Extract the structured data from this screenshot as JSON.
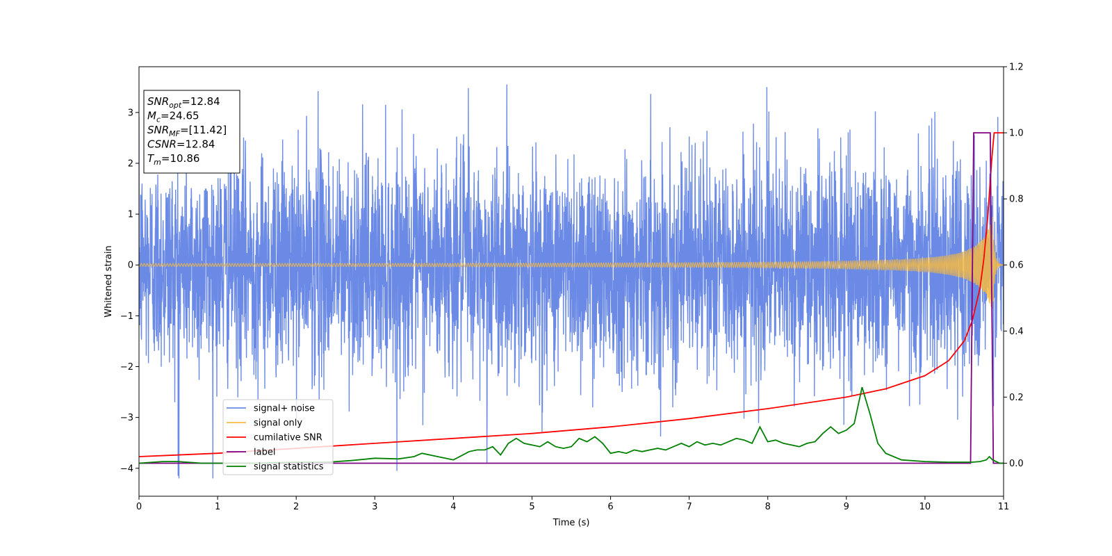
{
  "chart_data": {
    "type": "line",
    "xlabel": "Time (s)",
    "ylabel": "Whitened strain",
    "xlim": [
      0,
      11
    ],
    "ylim": [
      -4.55,
      3.9
    ],
    "y2lim": [
      -0.1,
      1.2
    ],
    "xticks": [
      "0",
      "1",
      "2",
      "3",
      "4",
      "5",
      "6",
      "7",
      "8",
      "9",
      "10",
      "11"
    ],
    "yticks": [
      "−4",
      "−3",
      "−2",
      "−1",
      "0",
      "1",
      "2",
      "3"
    ],
    "y2ticks": [
      "0.0",
      "0.2",
      "0.4",
      "0.6",
      "0.8",
      "1.0",
      "1.2"
    ],
    "grid": false,
    "legend_position": "lower-left",
    "info_box": {
      "snr_opt": {
        "symbol": "SNR",
        "sub": "opt",
        "value": "=12.84"
      },
      "mc": {
        "symbol": "M",
        "sub": "c",
        "value": "=24.65"
      },
      "snr_mf": {
        "symbol": "SNR",
        "sub": "MF",
        "value": "=[11.42]"
      },
      "csnr": {
        "symbol": "CSNR",
        "value": "=12.84"
      },
      "tm": {
        "symbol": "T",
        "sub": "m",
        "value": "=10.86"
      }
    },
    "series": [
      {
        "name": "signal+ noise",
        "color": "#6a8ae6",
        "axis": "left",
        "description_shape": "stationary noise, amplitude ~1.5 sigma, peaks to about 3.5 and -4.15"
      },
      {
        "name": "signal only",
        "color": "#f5b942",
        "axis": "left",
        "chirp": {
          "amplitude_start": 0.02,
          "amplitude_end": 1.0,
          "merger_time": 10.86
        }
      },
      {
        "name": "cumilative SNR",
        "color": "#ff0000",
        "axis": "right",
        "x": [
          0,
          1,
          2,
          3,
          4,
          5,
          6,
          7,
          8,
          9,
          9.5,
          10,
          10.3,
          10.5,
          10.6,
          10.7,
          10.75,
          10.8,
          10.85,
          10.88,
          11
        ],
        "y": [
          0.02,
          0.03,
          0.045,
          0.06,
          0.075,
          0.09,
          0.11,
          0.135,
          0.165,
          0.2,
          0.225,
          0.265,
          0.31,
          0.37,
          0.43,
          0.53,
          0.62,
          0.75,
          0.92,
          1.0,
          1.0
        ]
      },
      {
        "name": "label",
        "color": "#800080",
        "axis": "right",
        "x": [
          0,
          10.58,
          10.62,
          10.83,
          10.87,
          11
        ],
        "y": [
          0,
          0,
          1,
          1,
          0,
          0
        ]
      },
      {
        "name": "signal statistics",
        "color": "#008000",
        "axis": "right",
        "x": [
          0,
          0.3,
          0.5,
          0.8,
          1.0,
          1.5,
          2.0,
          2.4,
          2.7,
          3.0,
          3.3,
          3.5,
          3.6,
          3.8,
          4.0,
          4.2,
          4.3,
          4.4,
          4.5,
          4.6,
          4.7,
          4.8,
          4.9,
          5.0,
          5.1,
          5.2,
          5.3,
          5.4,
          5.5,
          5.6,
          5.7,
          5.8,
          5.9,
          6.0,
          6.1,
          6.2,
          6.3,
          6.4,
          6.5,
          6.6,
          6.7,
          6.8,
          6.9,
          7.0,
          7.1,
          7.2,
          7.3,
          7.4,
          7.5,
          7.6,
          7.7,
          7.8,
          7.9,
          8.0,
          8.1,
          8.2,
          8.3,
          8.4,
          8.5,
          8.6,
          8.7,
          8.8,
          8.9,
          9.0,
          9.1,
          9.2,
          9.3,
          9.4,
          9.5,
          9.7,
          10.0,
          10.3,
          10.6,
          10.7,
          10.78,
          10.82,
          10.86,
          10.95,
          11
        ],
        "y": [
          0.0,
          0.005,
          0.005,
          0.0,
          0.0,
          0.0,
          0.003,
          0.003,
          0.008,
          0.015,
          0.013,
          0.02,
          0.03,
          0.02,
          0.01,
          0.035,
          0.04,
          0.04,
          0.05,
          0.025,
          0.06,
          0.075,
          0.06,
          0.055,
          0.05,
          0.065,
          0.05,
          0.045,
          0.05,
          0.075,
          0.065,
          0.08,
          0.06,
          0.03,
          0.035,
          0.03,
          0.04,
          0.035,
          0.04,
          0.045,
          0.04,
          0.05,
          0.06,
          0.05,
          0.065,
          0.055,
          0.06,
          0.055,
          0.065,
          0.075,
          0.07,
          0.06,
          0.11,
          0.065,
          0.07,
          0.06,
          0.055,
          0.05,
          0.06,
          0.065,
          0.09,
          0.11,
          0.09,
          0.1,
          0.12,
          0.23,
          0.15,
          0.06,
          0.03,
          0.01,
          0.005,
          0.003,
          0.003,
          0.005,
          0.01,
          0.02,
          0.01,
          0.0,
          0.0
        ]
      }
    ]
  }
}
